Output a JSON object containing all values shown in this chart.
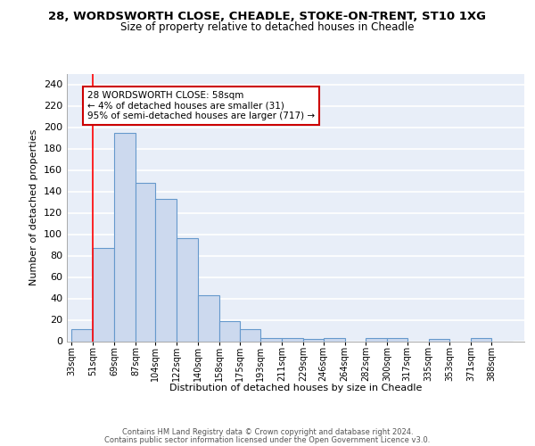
{
  "title": "28, WORDSWORTH CLOSE, CHEADLE, STOKE-ON-TRENT, ST10 1XG",
  "subtitle": "Size of property relative to detached houses in Cheadle",
  "xlabel": "Distribution of detached houses by size in Cheadle",
  "ylabel": "Number of detached properties",
  "categories": [
    "33sqm",
    "51sqm",
    "69sqm",
    "87sqm",
    "104sqm",
    "122sqm",
    "140sqm",
    "158sqm",
    "175sqm",
    "193sqm",
    "211sqm",
    "229sqm",
    "246sqm",
    "264sqm",
    "282sqm",
    "300sqm",
    "317sqm",
    "335sqm",
    "353sqm",
    "371sqm",
    "388sqm"
  ],
  "heights": [
    11,
    87,
    195,
    148,
    133,
    96,
    43,
    19,
    11,
    3,
    3,
    2,
    3,
    0,
    3,
    3,
    0,
    2,
    0,
    3,
    0
  ],
  "bar_color": "#ccd9ee",
  "bar_edge_color": "#6699cc",
  "annotation_text": "28 WORDSWORTH CLOSE: 58sqm\n← 4% of detached houses are smaller (31)\n95% of semi-detached houses are larger (717) →",
  "footer1": "Contains HM Land Registry data © Crown copyright and database right 2024.",
  "footer2": "Contains public sector information licensed under the Open Government Licence v3.0.",
  "ylim": [
    0,
    250
  ],
  "yticks": [
    0,
    20,
    40,
    60,
    80,
    100,
    120,
    140,
    160,
    180,
    200,
    220,
    240
  ],
  "background_color": "#e8eef8",
  "grid_color": "#ffffff",
  "bin_edges": [
    33,
    51,
    69,
    87,
    104,
    122,
    140,
    158,
    175,
    193,
    211,
    229,
    246,
    264,
    282,
    300,
    317,
    335,
    353,
    371,
    388,
    406
  ]
}
